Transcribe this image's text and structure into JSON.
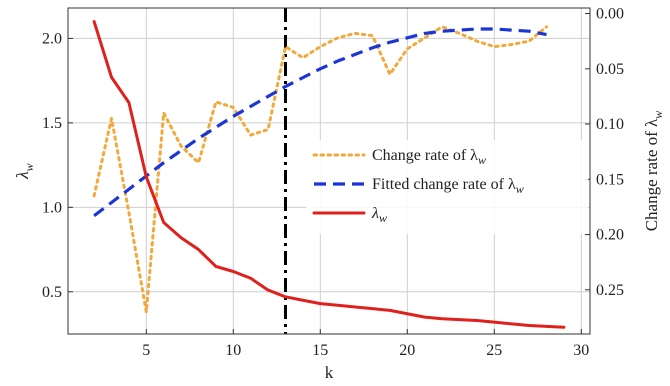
{
  "chart_data": {
    "type": "line",
    "xlabel": "k",
    "ylabel": "λ",
    "ylabel_sub": "w",
    "y2label": "Change rate of λ",
    "y2label_sub": "w",
    "xlim": [
      0.5,
      30.5
    ],
    "ylim": [
      0.25,
      2.18
    ],
    "y2lim": [
      0.29,
      -0.005
    ],
    "y2_inverted": true,
    "xticks": [
      5,
      10,
      15,
      20,
      25,
      30
    ],
    "xtick_labels": [
      "5",
      "10",
      "15",
      "20",
      "25",
      "30"
    ],
    "yticks": [
      0.5,
      1.0,
      1.5,
      2.0
    ],
    "ytick_labels": [
      "0.5",
      "1.0",
      "1.5",
      "2.0"
    ],
    "y2ticks": [
      0.0,
      0.05,
      0.1,
      0.15,
      0.2,
      0.25
    ],
    "y2tick_labels": [
      "0.00",
      "0.05",
      "0.10",
      "0.15",
      "0.20",
      "0.25"
    ],
    "grid": true,
    "legend_position": "center-right",
    "vline": {
      "x": 13,
      "style": "dash-dot",
      "color": "#000000"
    },
    "series": [
      {
        "name": "Change rate of λ",
        "name_sub": "w",
        "axis": "right",
        "style": "dotted",
        "color": "#F2A93B",
        "x": [
          2,
          3,
          4,
          5,
          6,
          7,
          8,
          9,
          10,
          11,
          12,
          13,
          14,
          15,
          16,
          17,
          18,
          19,
          20,
          21,
          22,
          23,
          24,
          25,
          26,
          27,
          28
        ],
        "y": [
          0.165,
          0.095,
          0.18,
          0.27,
          0.09,
          0.12,
          0.135,
          0.08,
          0.085,
          0.11,
          0.105,
          0.03,
          0.04,
          0.03,
          0.022,
          0.018,
          0.02,
          0.055,
          0.032,
          0.022,
          0.012,
          0.018,
          0.025,
          0.03,
          0.028,
          0.025,
          0.012
        ]
      },
      {
        "name": "Fitted change rate of λ",
        "name_sub": "w",
        "axis": "right",
        "style": "dashed",
        "color": "#1B35D6",
        "x": [
          2,
          3,
          4,
          5,
          6,
          7,
          8,
          9,
          10,
          11,
          12,
          13,
          14,
          15,
          16,
          17,
          18,
          19,
          20,
          21,
          22,
          23,
          24,
          25,
          26,
          27,
          28
        ],
        "y": [
          0.183,
          0.171,
          0.159,
          0.147,
          0.135,
          0.124,
          0.113,
          0.103,
          0.093,
          0.084,
          0.075,
          0.066,
          0.058,
          0.05,
          0.043,
          0.037,
          0.031,
          0.026,
          0.022,
          0.018,
          0.016,
          0.015,
          0.014,
          0.014,
          0.015,
          0.016,
          0.019
        ]
      },
      {
        "name": "λ",
        "name_sub": "w",
        "axis": "left",
        "style": "solid",
        "color": "#E0201C",
        "x": [
          2,
          3,
          4,
          5,
          6,
          7,
          8,
          9,
          10,
          11,
          12,
          13,
          14,
          15,
          16,
          17,
          18,
          19,
          20,
          21,
          22,
          23,
          24,
          25,
          26,
          27,
          28,
          29
        ],
        "y": [
          2.1,
          1.77,
          1.62,
          1.18,
          0.91,
          0.82,
          0.75,
          0.65,
          0.62,
          0.58,
          0.51,
          0.47,
          0.45,
          0.43,
          0.42,
          0.41,
          0.4,
          0.39,
          0.37,
          0.35,
          0.34,
          0.335,
          0.33,
          0.32,
          0.31,
          0.3,
          0.295,
          0.29
        ]
      }
    ]
  }
}
